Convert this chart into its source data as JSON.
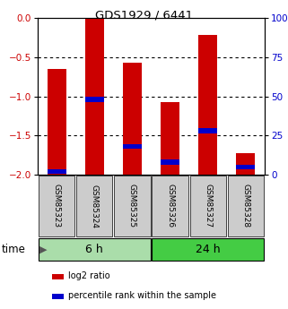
{
  "title": "GDS1929 / 6441",
  "samples": [
    "GSM85323",
    "GSM85324",
    "GSM85325",
    "GSM85326",
    "GSM85327",
    "GSM85328"
  ],
  "log2_ratio": [
    -0.65,
    0.0,
    -0.57,
    -1.07,
    -0.22,
    -1.72
  ],
  "percentile_rank": [
    2,
    48,
    18,
    8,
    28,
    5
  ],
  "bar_color": "#cc0000",
  "pct_color": "#0000cc",
  "groups": [
    {
      "label": "6 h",
      "samples": [
        0,
        1,
        2
      ],
      "color": "#aaddaa"
    },
    {
      "label": "24 h",
      "samples": [
        3,
        4,
        5
      ],
      "color": "#44cc44"
    }
  ],
  "ylim_left": [
    -2.0,
    0.0
  ],
  "ylim_right": [
    0,
    100
  ],
  "yticks_left": [
    -2.0,
    -1.5,
    -1.0,
    -0.5,
    0.0
  ],
  "yticks_right": [
    0,
    25,
    50,
    75,
    100
  ],
  "ytick_right_labels": [
    "0",
    "25",
    "50",
    "75",
    "100%"
  ],
  "ylabel_left_color": "#cc0000",
  "ylabel_right_color": "#0000cc",
  "background_color": "#ffffff",
  "plot_bg": "#ffffff",
  "time_label": "time",
  "legend_items": [
    {
      "label": "log2 ratio",
      "color": "#cc0000"
    },
    {
      "label": "percentile rank within the sample",
      "color": "#0000cc"
    }
  ],
  "gridlines": [
    -0.5,
    -1.0,
    -1.5
  ],
  "bar_width": 0.5,
  "pct_bar_height": 0.06
}
